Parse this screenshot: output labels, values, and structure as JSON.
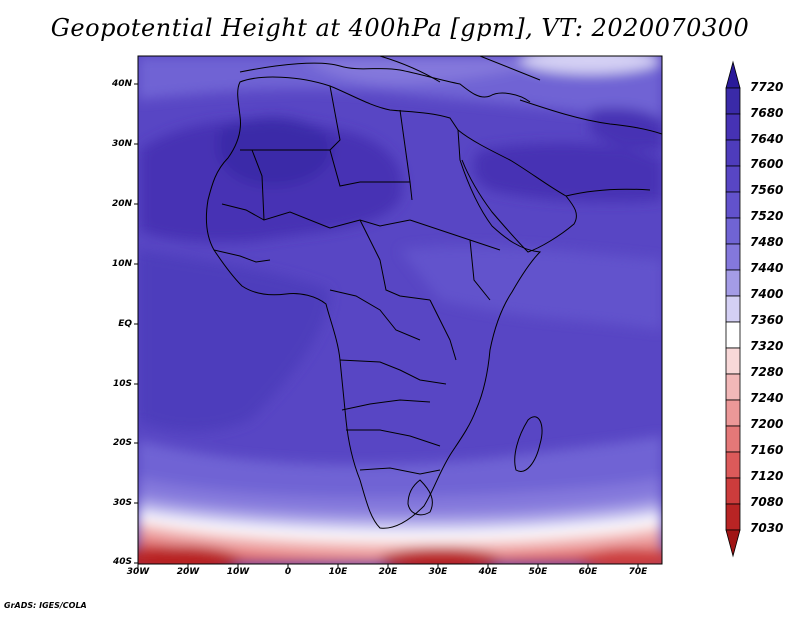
{
  "title": "Geopotential Height at 400hPa [gpm], VT: 2020070300",
  "footer": "GrADS: IGES/COLA",
  "axes": {
    "y_ticks": [
      "40N",
      "30N",
      "20N",
      "10N",
      "EQ",
      "10S",
      "20S",
      "30S",
      "40S"
    ],
    "x_ticks": [
      "30W",
      "20W",
      "10W",
      "0",
      "10E",
      "20E",
      "30E",
      "40E",
      "50E",
      "60E",
      "70E"
    ]
  },
  "colorbar": {
    "labels": [
      "7720",
      "7680",
      "7640",
      "7600",
      "7560",
      "7520",
      "7480",
      "7440",
      "7400",
      "7360",
      "7320",
      "7280",
      "7240",
      "7200",
      "7160",
      "7120",
      "7080",
      "7030"
    ],
    "colors_top_to_bottom": [
      "#2a1a9a",
      "#3a2aa8",
      "#4632b4",
      "#4e3cbc",
      "#5846c4",
      "#6252cc",
      "#7064d4",
      "#8478dc",
      "#a49ce6",
      "#d4d0f4",
      "#ffffff",
      "#f8d8d8",
      "#f2b8b8",
      "#ec9898",
      "#e47878",
      "#dc5a5a",
      "#cc3c3c",
      "#b82424",
      "#a01414"
    ]
  },
  "colors": {
    "deep": "#4632b4",
    "mid": "#5846c4",
    "light": "#7064d4",
    "pale": "#a49ce6",
    "red": "#b82424",
    "coast": "#000000"
  }
}
